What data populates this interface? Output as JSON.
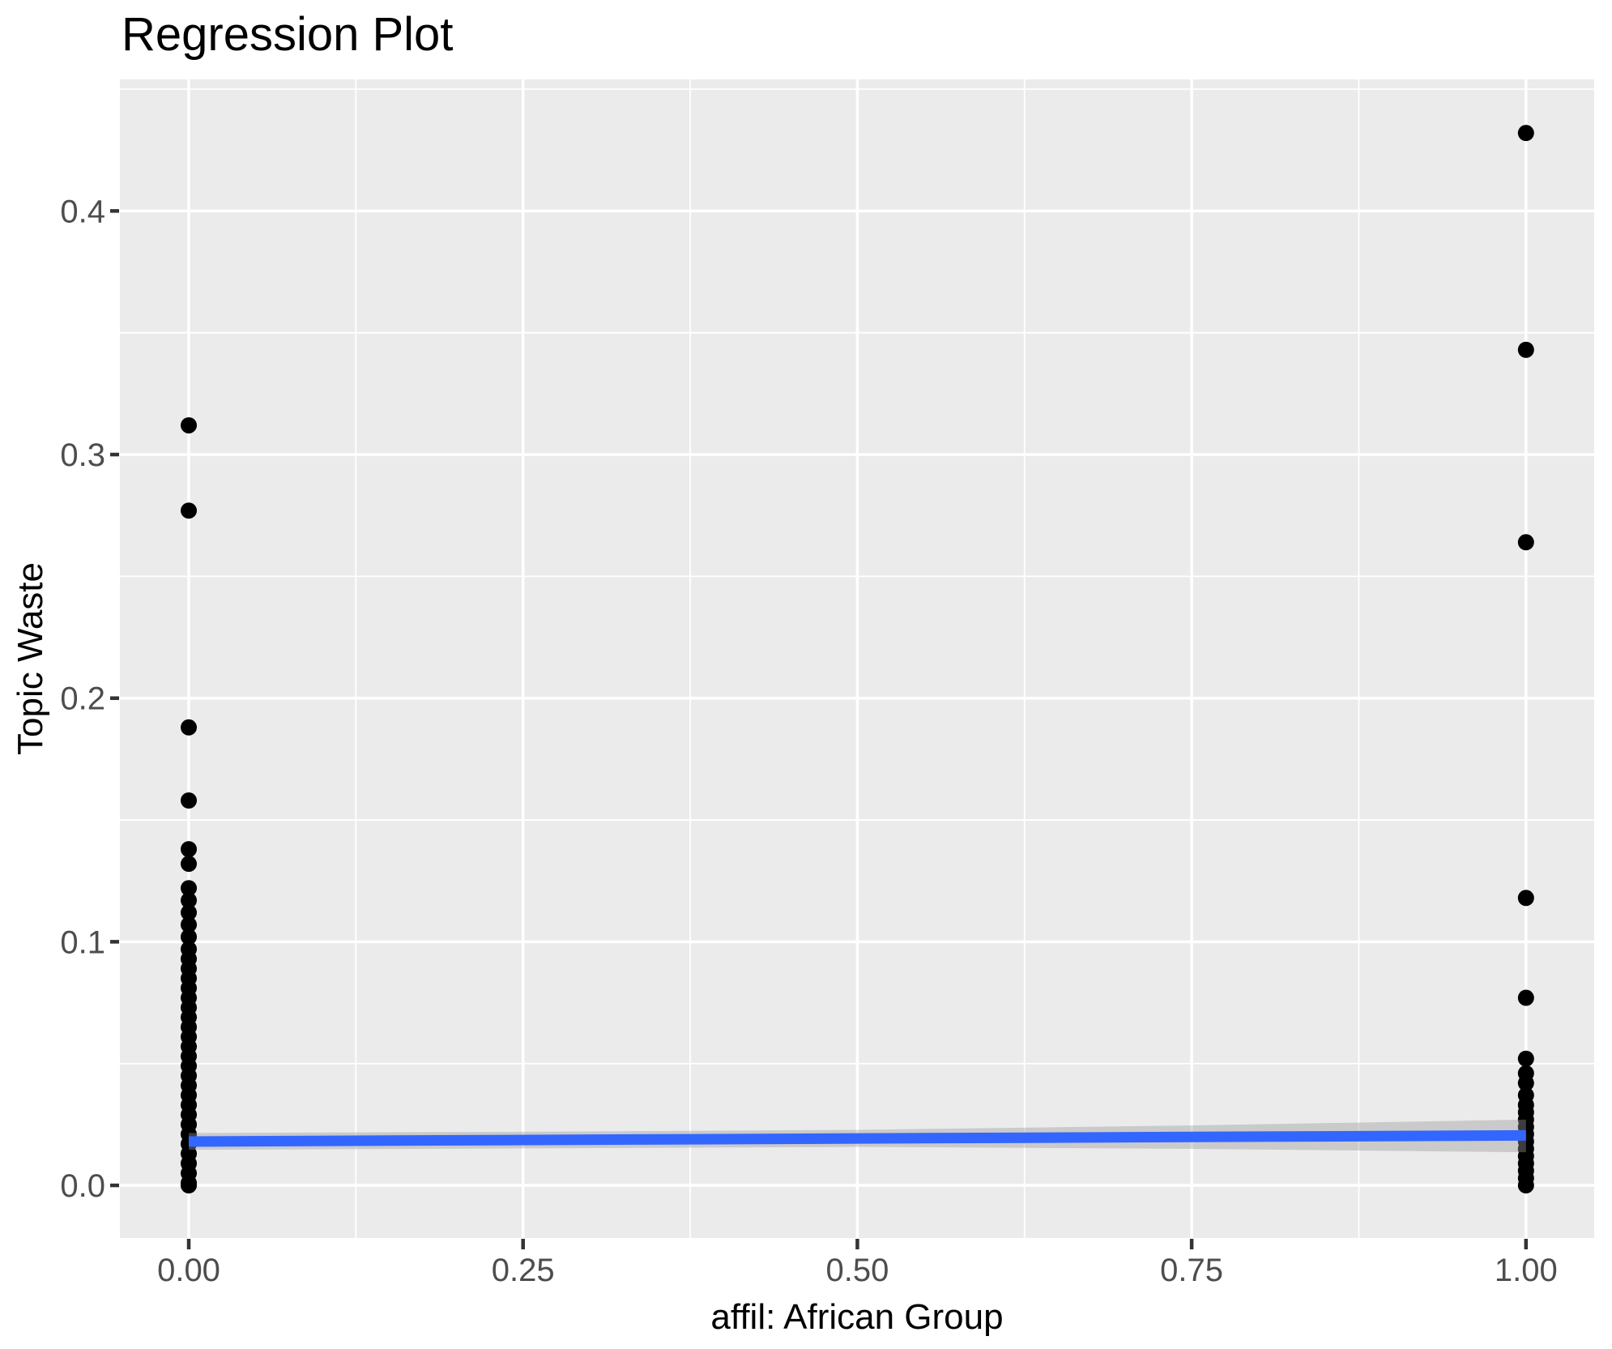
{
  "title": "Regression Plot",
  "axes": {
    "x_title": "affil: African Group",
    "y_title": "Topic Waste"
  },
  "colors": {
    "panel_background": "#EBEBEB",
    "gridline": "#FFFFFF",
    "point": "#000000",
    "tick_mark": "#333333",
    "tick_label": "#4D4D4D",
    "title_text": "#000000",
    "regression_line": "#3366FF",
    "confidence_band": "rgba(153,153,153,0.4)"
  },
  "chart_data": {
    "type": "scatter",
    "title": "Regression Plot",
    "xlabel": "affil: African Group",
    "ylabel": "Topic Waste",
    "xlim": [
      -0.0515,
      1.051
    ],
    "ylim": [
      -0.0216,
      0.454
    ],
    "grid": true,
    "legend": false,
    "x_major_ticks": [
      {
        "label": "0.00",
        "value": 0.0
      },
      {
        "label": "0.25",
        "value": 0.25
      },
      {
        "label": "0.50",
        "value": 0.5
      },
      {
        "label": "0.75",
        "value": 0.75
      },
      {
        "label": "1.00",
        "value": 1.0
      }
    ],
    "y_major_ticks": [
      {
        "label": "0.0",
        "value": 0.0
      },
      {
        "label": "0.1",
        "value": 0.1
      },
      {
        "label": "0.2",
        "value": 0.2
      },
      {
        "label": "0.3",
        "value": 0.3
      },
      {
        "label": "0.4",
        "value": 0.4
      }
    ],
    "x_minor_gridlines": [
      0.125,
      0.375,
      0.625,
      0.875
    ],
    "y_minor_gridlines": [
      0.05,
      0.15,
      0.25,
      0.35,
      0.45
    ],
    "series": [
      {
        "name": "affil = 0",
        "x": 0,
        "y_values": [
          0.312,
          0.277,
          0.188,
          0.158,
          0.138,
          0.132,
          0.122,
          0.117,
          0.112,
          0.107,
          0.102,
          0.097,
          0.093,
          0.089,
          0.085,
          0.081,
          0.077,
          0.073,
          0.069,
          0.065,
          0.061,
          0.057,
          0.053,
          0.049,
          0.045,
          0.041,
          0.037,
          0.033,
          0.029,
          0.025,
          0.021,
          0.017,
          0.013,
          0.009,
          0.005,
          0.001,
          0.0
        ]
      },
      {
        "name": "affil = 1",
        "x": 1,
        "y_values": [
          0.432,
          0.343,
          0.264,
          0.118,
          0.077,
          0.052,
          0.046,
          0.042,
          0.037,
          0.033,
          0.03,
          0.027,
          0.024,
          0.021,
          0.018,
          0.015,
          0.012,
          0.009,
          0.006,
          0.003,
          0.0
        ]
      }
    ],
    "regression_line": {
      "x": [
        0,
        1
      ],
      "y": [
        0.018,
        0.0205
      ]
    },
    "confidence_band": {
      "x": [
        0,
        0.25,
        0.5,
        0.75,
        1.0
      ],
      "upper": [
        0.0215,
        0.022,
        0.0228,
        0.0246,
        0.027
      ],
      "lower": [
        0.0146,
        0.0152,
        0.0158,
        0.015,
        0.0136
      ]
    }
  }
}
